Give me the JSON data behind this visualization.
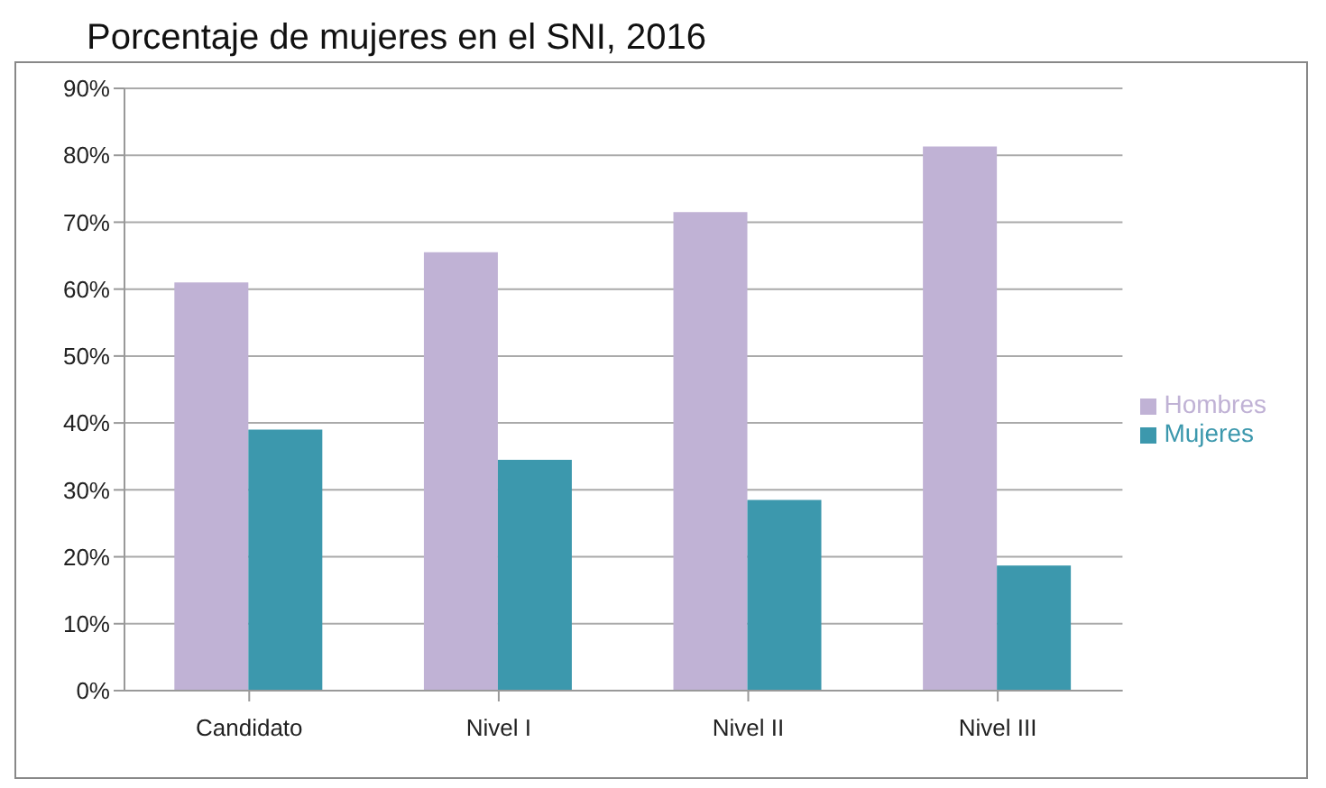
{
  "chart_data": {
    "type": "bar",
    "title": "Porcentaje de mujeres en el SNI, 2016",
    "categories": [
      "Candidato",
      "Nivel I",
      "Nivel II",
      "Nivel III"
    ],
    "series": [
      {
        "name": "Hombres",
        "color": "#c0b2d5",
        "values": [
          61,
          65.5,
          71.5,
          81.3
        ]
      },
      {
        "name": "Mujeres",
        "color": "#3c98ad",
        "values": [
          39,
          34.5,
          28.5,
          18.7
        ]
      }
    ],
    "ylim": [
      0,
      90
    ],
    "yticks": [
      {
        "value": 0,
        "label": "0%"
      },
      {
        "value": 10,
        "label": "10%"
      },
      {
        "value": 20,
        "label": "20%"
      },
      {
        "value": 30,
        "label": "30%"
      },
      {
        "value": 40,
        "label": "40%"
      },
      {
        "value": 50,
        "label": "50%"
      },
      {
        "value": 60,
        "label": "60%"
      },
      {
        "value": 70,
        "label": "70%"
      },
      {
        "value": 80,
        "label": "80%"
      },
      {
        "value": 90,
        "label": "90%"
      }
    ],
    "grid": "y",
    "legend": "right"
  }
}
